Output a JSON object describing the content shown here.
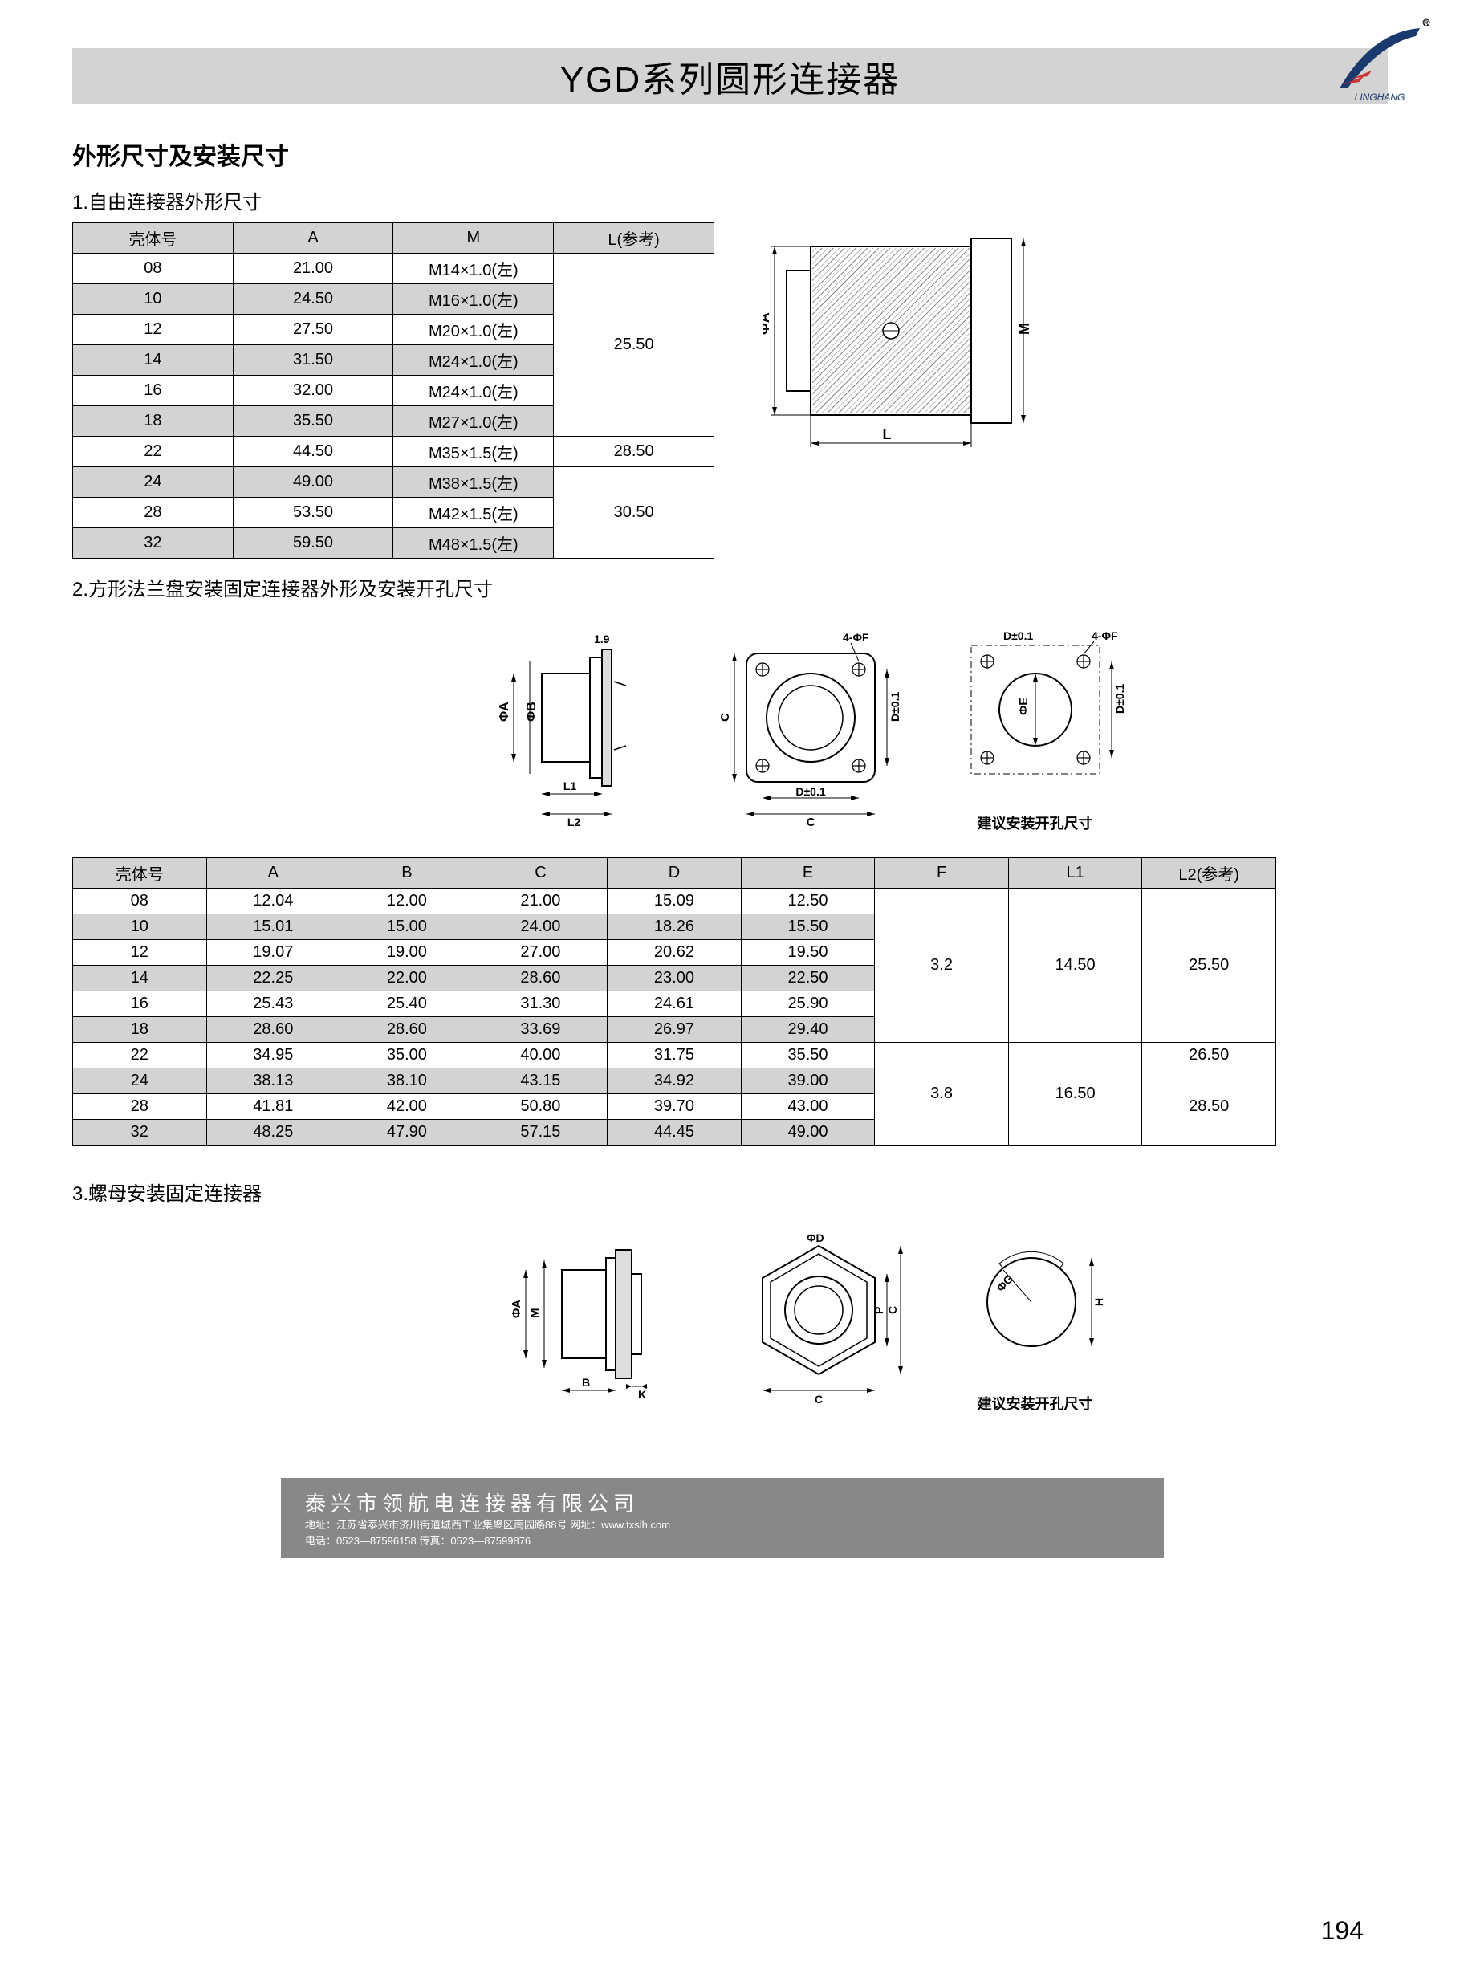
{
  "header": {
    "title": "YGD系列圆形连接器",
    "logo_text": "LINGHANG"
  },
  "section_title": "外形尺寸及安装尺寸",
  "sub1": {
    "title": "1.自由连接器外形尺寸",
    "columns": [
      "壳体号",
      "A",
      "M",
      "L(参考)"
    ],
    "rows": [
      {
        "cells": [
          "08",
          "21.00",
          "M14×1.0(左)"
        ],
        "alt": false
      },
      {
        "cells": [
          "10",
          "24.50",
          "M16×1.0(左)"
        ],
        "alt": true
      },
      {
        "cells": [
          "12",
          "27.50",
          "M20×1.0(左)"
        ],
        "alt": false
      },
      {
        "cells": [
          "14",
          "31.50",
          "M24×1.0(左)"
        ],
        "alt": true
      },
      {
        "cells": [
          "16",
          "32.00",
          "M24×1.0(左)"
        ],
        "alt": false
      },
      {
        "cells": [
          "18",
          "35.50",
          "M27×1.0(左)"
        ],
        "alt": true
      },
      {
        "cells": [
          "22",
          "44.50",
          "M35×1.5(左)"
        ],
        "alt": false
      },
      {
        "cells": [
          "24",
          "49.00",
          "M38×1.5(左)"
        ],
        "alt": true
      },
      {
        "cells": [
          "28",
          "53.50",
          "M42×1.5(左)"
        ],
        "alt": false
      },
      {
        "cells": [
          "32",
          "59.50",
          "M48×1.5(左)"
        ],
        "alt": true
      }
    ],
    "L_merge": [
      {
        "value": "25.50",
        "rows": 6
      },
      {
        "value": "28.50",
        "rows": 1
      },
      {
        "value": "30.50",
        "rows": 3
      }
    ],
    "diagram_labels": {
      "phiA": "ΦA",
      "M": "M",
      "L": "L"
    }
  },
  "sub2": {
    "title": "2.方形法兰盘安装固定连接器外形及安装开孔尺寸",
    "caption": "建议安装开孔尺寸",
    "dlabels": [
      "1.9",
      "ΦA",
      "ΦB",
      "L1",
      "L2",
      "C",
      "D±0.1",
      "4-ΦF",
      "ΦE",
      "D±0.1"
    ],
    "columns": [
      "壳体号",
      "A",
      "B",
      "C",
      "D",
      "E",
      "F",
      "L1",
      "L2(参考)"
    ],
    "rows": [
      {
        "cells": [
          "08",
          "12.04",
          "12.00",
          "21.00",
          "15.09",
          "12.50"
        ],
        "alt": false
      },
      {
        "cells": [
          "10",
          "15.01",
          "15.00",
          "24.00",
          "18.26",
          "15.50"
        ],
        "alt": true
      },
      {
        "cells": [
          "12",
          "19.07",
          "19.00",
          "27.00",
          "20.62",
          "19.50"
        ],
        "alt": false
      },
      {
        "cells": [
          "14",
          "22.25",
          "22.00",
          "28.60",
          "23.00",
          "22.50"
        ],
        "alt": true
      },
      {
        "cells": [
          "16",
          "25.43",
          "25.40",
          "31.30",
          "24.61",
          "25.90"
        ],
        "alt": false
      },
      {
        "cells": [
          "18",
          "28.60",
          "28.60",
          "33.69",
          "26.97",
          "29.40"
        ],
        "alt": true
      },
      {
        "cells": [
          "22",
          "34.95",
          "35.00",
          "40.00",
          "31.75",
          "35.50"
        ],
        "alt": false
      },
      {
        "cells": [
          "24",
          "38.13",
          "38.10",
          "43.15",
          "34.92",
          "39.00"
        ],
        "alt": true
      },
      {
        "cells": [
          "28",
          "41.81",
          "42.00",
          "50.80",
          "39.70",
          "43.00"
        ],
        "alt": false
      },
      {
        "cells": [
          "32",
          "48.25",
          "47.90",
          "57.15",
          "44.45",
          "49.00"
        ],
        "alt": true
      }
    ],
    "F_merge": [
      {
        "value": "3.2",
        "rows": 6
      },
      {
        "value": "3.8",
        "rows": 4
      }
    ],
    "L1_merge": [
      {
        "value": "14.50",
        "rows": 6
      },
      {
        "value": "16.50",
        "rows": 4
      }
    ],
    "L2_merge": [
      {
        "value": "25.50",
        "rows": 6
      },
      {
        "value": "26.50",
        "rows": 1
      },
      {
        "value": "28.50",
        "rows": 3
      }
    ]
  },
  "sub3": {
    "title": "3.螺母安装固定连接器",
    "caption": "建议安装开孔尺寸",
    "dlabels": [
      "ΦA",
      "M",
      "B",
      "K",
      "ΦD",
      "P",
      "C",
      "ΦG",
      "H"
    ]
  },
  "footer": {
    "company": "泰兴市领航电连接器有限公司",
    "addr": "地址：江苏省泰兴市济川街道城西工业集聚区南园路88号  网址：www.txslh.com",
    "tel": "电话：0523—87596158                                                传真：0523—87599876"
  },
  "page_number": "194"
}
